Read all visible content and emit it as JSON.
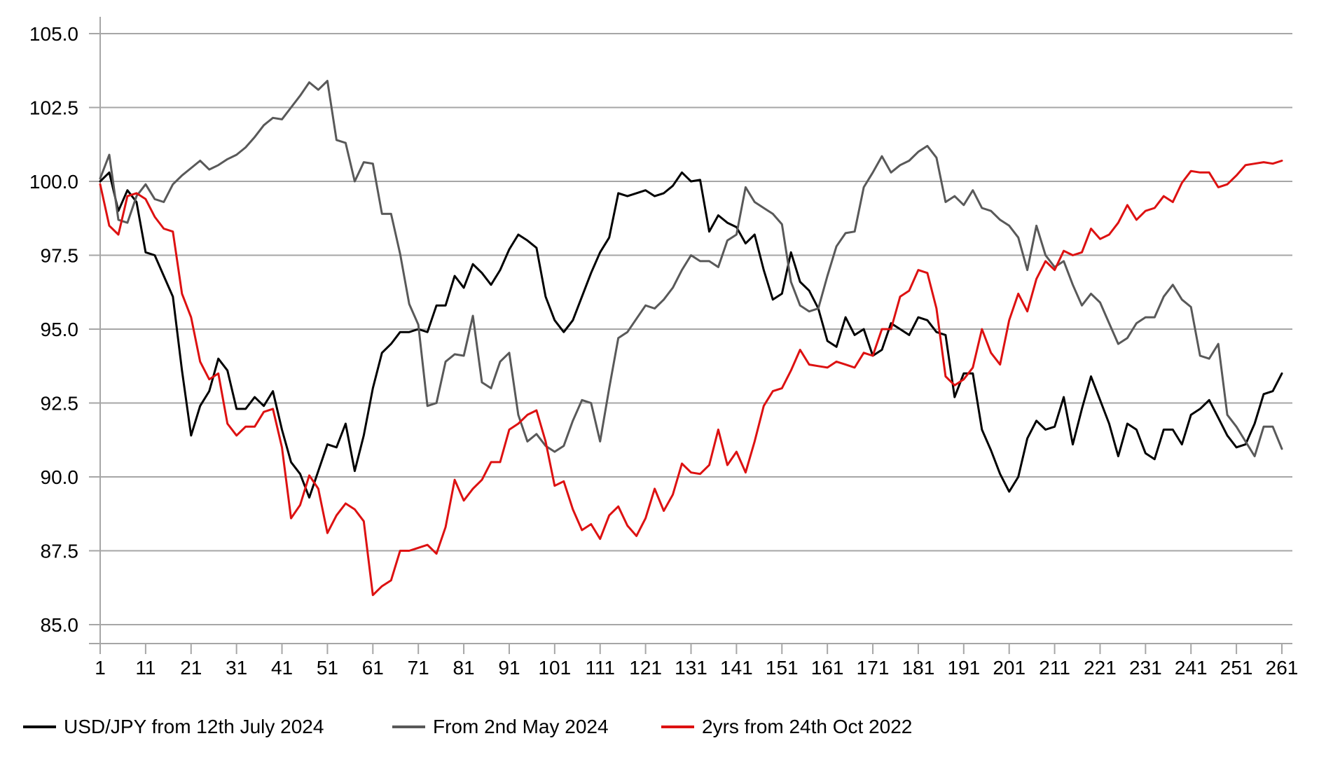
{
  "chart_data": {
    "type": "line",
    "title": "",
    "xlabel": "",
    "ylabel": "",
    "grid": "horizontal",
    "legend_position": "bottom-left",
    "x_axis": {
      "min": 1,
      "max": 261,
      "ticks": [
        1,
        11,
        21,
        31,
        41,
        51,
        61,
        71,
        81,
        91,
        101,
        111,
        121,
        131,
        141,
        151,
        161,
        171,
        181,
        191,
        201,
        211,
        221,
        231,
        241,
        251,
        261
      ]
    },
    "y_axis": {
      "min": 85.0,
      "max": 105.0,
      "ticks": [
        105.0,
        102.5,
        100.0,
        97.5,
        95.0,
        92.5,
        90.0,
        87.5,
        85.0
      ],
      "tick_decimals": 1
    },
    "x_sample_start": 1,
    "x_sample_step": 2,
    "series": [
      {
        "name": "USD/JPY from 12th July 2024",
        "color": "#000000",
        "values": [
          100.0,
          100.3,
          99.0,
          99.7,
          99.3,
          97.6,
          97.5,
          96.8,
          96.1,
          93.6,
          91.4,
          92.4,
          92.9,
          94.0,
          93.6,
          92.3,
          92.3,
          92.7,
          92.4,
          92.9,
          91.6,
          90.5,
          90.1,
          89.3,
          90.2,
          91.1,
          91.0,
          91.8,
          90.2,
          91.4,
          93.0,
          94.2,
          94.5,
          94.9,
          94.9,
          95.0,
          94.9,
          95.8,
          95.8,
          96.8,
          96.4,
          97.2,
          96.9,
          96.5,
          97.0,
          97.7,
          98.2,
          98.0,
          97.75,
          96.1,
          95.3,
          94.9,
          95.3,
          96.1,
          96.9,
          97.6,
          98.1,
          99.6,
          99.5,
          99.6,
          99.7,
          99.5,
          99.6,
          99.85,
          100.3,
          100.0,
          100.05,
          98.3,
          98.85,
          98.6,
          98.45,
          97.9,
          98.2,
          97.0,
          96.0,
          96.2,
          97.6,
          96.6,
          96.3,
          95.7,
          94.6,
          94.4,
          95.4,
          94.8,
          95.0,
          94.1,
          94.3,
          95.2,
          95.0,
          94.8,
          95.4,
          95.3,
          94.9,
          94.8,
          92.7,
          93.5,
          93.5,
          91.6,
          90.9,
          90.1,
          89.5,
          90.0,
          91.3,
          91.9,
          91.6,
          91.7,
          92.7,
          91.1,
          92.3,
          93.4,
          92.6,
          91.8,
          90.7,
          91.8,
          91.6,
          90.8,
          90.6,
          91.6,
          91.6,
          91.1,
          92.1,
          92.3,
          92.6,
          92.0,
          91.4,
          91.0,
          91.1,
          91.8,
          92.8,
          92.9,
          93.5
        ]
      },
      {
        "name": "From 2nd May 2024",
        "color": "#595959",
        "values": [
          100.1,
          100.9,
          98.7,
          98.6,
          99.5,
          99.9,
          99.4,
          99.3,
          99.9,
          100.2,
          100.45,
          100.7,
          100.4,
          100.55,
          100.75,
          100.9,
          101.15,
          101.5,
          101.9,
          102.15,
          102.1,
          102.5,
          102.9,
          103.35,
          103.1,
          103.4,
          101.4,
          101.3,
          100.0,
          100.65,
          100.6,
          98.9,
          98.9,
          97.55,
          95.85,
          95.15,
          92.4,
          92.5,
          93.9,
          94.15,
          94.1,
          95.45,
          93.2,
          93.0,
          93.9,
          94.2,
          92.1,
          91.2,
          91.45,
          91.05,
          90.85,
          91.05,
          91.9,
          92.6,
          92.5,
          91.2,
          93.0,
          94.7,
          94.9,
          95.35,
          95.8,
          95.7,
          96.0,
          96.4,
          97.0,
          97.5,
          97.3,
          97.3,
          97.1,
          98.0,
          98.2,
          99.8,
          99.3,
          99.1,
          98.9,
          98.55,
          96.6,
          95.8,
          95.6,
          95.7,
          96.8,
          97.8,
          98.25,
          98.3,
          99.8,
          100.3,
          100.85,
          100.3,
          100.55,
          100.7,
          101.0,
          101.2,
          100.8,
          99.3,
          99.5,
          99.2,
          99.7,
          99.1,
          99.0,
          98.7,
          98.5,
          98.1,
          97.0,
          98.5,
          97.5,
          97.1,
          97.3,
          96.5,
          95.8,
          96.2,
          95.9,
          95.2,
          94.5,
          94.7,
          95.2,
          95.4,
          95.4,
          96.1,
          96.5,
          96.0,
          95.75,
          94.1,
          94.0,
          94.5,
          92.1,
          91.7,
          91.2,
          90.7,
          91.7,
          91.7,
          90.95
        ]
      },
      {
        "name": "2yrs from 24th Oct 2022",
        "color": "#dd1111",
        "values": [
          99.9,
          98.5,
          98.2,
          99.5,
          99.6,
          99.4,
          98.8,
          98.4,
          98.3,
          96.2,
          95.4,
          93.9,
          93.3,
          93.5,
          91.8,
          91.4,
          91.7,
          91.7,
          92.2,
          92.3,
          91.0,
          88.6,
          89.05,
          90.05,
          89.6,
          88.1,
          88.7,
          89.1,
          88.9,
          88.5,
          86.0,
          86.3,
          86.5,
          87.5,
          87.5,
          87.6,
          87.7,
          87.4,
          88.3,
          89.9,
          89.2,
          89.6,
          89.9,
          90.5,
          90.5,
          91.6,
          91.8,
          92.1,
          92.25,
          91.2,
          89.7,
          89.85,
          88.9,
          88.2,
          88.4,
          87.9,
          88.7,
          89.0,
          88.35,
          88.0,
          88.6,
          89.6,
          88.85,
          89.4,
          90.45,
          90.15,
          90.1,
          90.4,
          91.6,
          90.4,
          90.85,
          90.15,
          91.2,
          92.4,
          92.9,
          93.0,
          93.6,
          94.3,
          93.8,
          93.75,
          93.7,
          93.9,
          93.8,
          93.7,
          94.2,
          94.1,
          95.0,
          95.0,
          96.1,
          96.3,
          97.0,
          96.9,
          95.7,
          93.4,
          93.1,
          93.3,
          93.7,
          95.0,
          94.2,
          93.8,
          95.3,
          96.2,
          95.6,
          96.7,
          97.3,
          97.0,
          97.65,
          97.5,
          97.6,
          98.4,
          98.05,
          98.2,
          98.6,
          99.2,
          98.7,
          99.0,
          99.1,
          99.5,
          99.3,
          99.95,
          100.35,
          100.3,
          100.3,
          99.8,
          99.9,
          100.2,
          100.55,
          100.6,
          100.65,
          100.6,
          100.7
        ]
      }
    ]
  },
  "colors": {
    "gridline": "#a6a6a6",
    "axis_line": "#a6a6a6",
    "tick_text": "#000000",
    "background": "#ffffff"
  }
}
